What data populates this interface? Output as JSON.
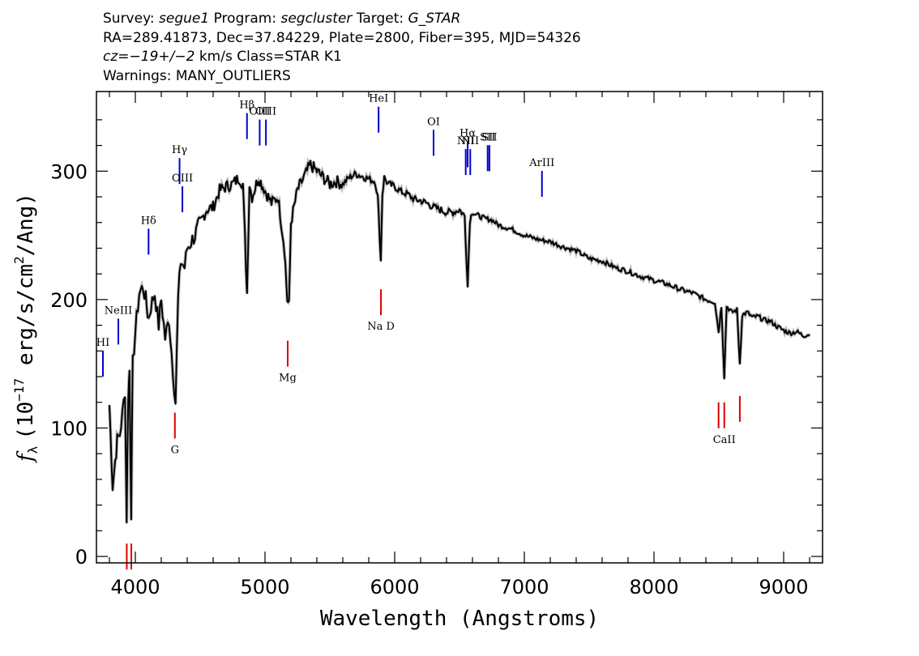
{
  "header": {
    "survey_label": "Survey:",
    "survey": "segue1",
    "program_label": "Program:",
    "program": "segcluster",
    "target_label": "Target:",
    "target": "G_STAR",
    "line2": "RA=289.41873, Dec=37.84229, Plate=2800, Fiber=395, MJD=54326",
    "cz_label": "cz=",
    "cz_value": "−19+/−2",
    "cz_rest": " km/s Class=STAR K1",
    "line4": "Warnings: MANY_OUTLIERS"
  },
  "chart_data": {
    "type": "line",
    "title": "",
    "xlabel": "Wavelength (Angstroms)",
    "ylabel_prefix": "f",
    "ylabel_sub": "λ",
    "ylabel_main": "(10",
    "ylabel_exp1": "−17",
    "ylabel_mid": " erg/s/cm",
    "ylabel_exp2": "2",
    "ylabel_end": "/Ang)",
    "xlim": [
      3700,
      9300
    ],
    "ylim": [
      -5,
      362
    ],
    "x_ticks": [
      4000,
      5000,
      6000,
      7000,
      8000,
      9000
    ],
    "x_tick_labels": [
      "4000",
      "5000",
      "6000",
      "7000",
      "8000",
      "9000"
    ],
    "y_ticks": [
      0,
      100,
      200,
      300
    ],
    "y_tick_labels": [
      "0",
      "100",
      "200",
      "300"
    ],
    "grid": false,
    "colors": {
      "spectrum": "#000000",
      "error": "#b8b8b8",
      "emission": "#0000cc",
      "absorption": "#dd0000",
      "label_line": "#000000"
    },
    "series": [
      {
        "x": [
          3800,
          3825,
          3845,
          3860,
          3880,
          3900,
          3920,
          3933,
          3945,
          3955,
          3968,
          3980,
          4000,
          4030,
          4060,
          4080,
          4102,
          4120,
          4150,
          4180,
          4200,
          4230,
          4260,
          4290,
          4310,
          4330,
          4350,
          4380,
          4400,
          4430,
          4460,
          4500,
          4550,
          4600,
          4650,
          4700,
          4750,
          4800,
          4830,
          4861,
          4880,
          4900,
          4950,
          5000,
          5050,
          5100,
          5150,
          5172,
          5185,
          5200,
          5250,
          5300,
          5350,
          5400,
          5450,
          5500,
          5550,
          5600,
          5650,
          5700,
          5750,
          5800,
          5850,
          5870,
          5893,
          5905,
          5920,
          5950,
          6000,
          6050,
          6100,
          6150,
          6200,
          6250,
          6300,
          6350,
          6400,
          6450,
          6500,
          6540,
          6563,
          6580,
          6600,
          6650,
          6700,
          6750,
          6800,
          6900,
          7000,
          7100,
          7200,
          7300,
          7400,
          7500,
          7600,
          7700,
          7800,
          7900,
          8000,
          8100,
          8200,
          8300,
          8400,
          8470,
          8498,
          8520,
          8542,
          8560,
          8600,
          8640,
          8662,
          8680,
          8720,
          8760,
          8800,
          8850,
          8900,
          8950,
          9000,
          9050,
          9100,
          9150,
          9200
        ],
        "y": [
          118,
          55,
          75,
          90,
          95,
          110,
          130,
          30,
          125,
          145,
          35,
          150,
          175,
          205,
          210,
          200,
          185,
          195,
          205,
          180,
          200,
          170,
          185,
          145,
          120,
          200,
          230,
          225,
          240,
          245,
          250,
          260,
          270,
          272,
          285,
          288,
          290,
          295,
          290,
          205,
          290,
          280,
          295,
          285,
          275,
          280,
          240,
          200,
          195,
          260,
          285,
          295,
          305,
          300,
          295,
          290,
          292,
          290,
          295,
          298,
          296,
          294,
          292,
          280,
          230,
          282,
          295,
          290,
          288,
          284,
          282,
          278,
          277,
          275,
          272,
          270,
          268,
          268,
          270,
          265,
          210,
          262,
          268,
          265,
          263,
          262,
          258,
          255,
          250,
          247,
          245,
          241,
          238,
          232,
          230,
          225,
          222,
          218,
          215,
          212,
          208,
          205,
          200,
          198,
          175,
          195,
          140,
          195,
          190,
          192,
          150,
          188,
          190,
          186,
          187,
          184,
          183,
          179,
          176,
          174,
          175,
          172,
          173
        ]
      }
    ],
    "emission_lines": [
      {
        "label": "HI",
        "x": 3750,
        "y": 140
      },
      {
        "label": "NeIII",
        "x": 3869,
        "y": 165
      },
      {
        "label": "Hδ",
        "x": 4102,
        "y": 235
      },
      {
        "label": "Hγ",
        "x": 4341,
        "y": 290
      },
      {
        "label": "OIII",
        "x": 4363,
        "y": 268
      },
      {
        "label": "Hβ",
        "x": 4861,
        "y": 325
      },
      {
        "label": "OIII",
        "x": 4959,
        "y": 320
      },
      {
        "label": "OIII",
        "x": 5007,
        "y": 320
      },
      {
        "label": "HeI",
        "x": 5876,
        "y": 330
      },
      {
        "label": "OI",
        "x": 6300,
        "y": 312
      },
      {
        "label": "NII",
        "x": 6548,
        "y": 297
      },
      {
        "label": "Hα",
        "x": 6563,
        "y": 303
      },
      {
        "label": "NII",
        "x": 6583,
        "y": 297
      },
      {
        "label": "SII",
        "x": 6717,
        "y": 300
      },
      {
        "label": "SII",
        "x": 6731,
        "y": 300
      },
      {
        "label": "ArIII",
        "x": 7136,
        "y": 280
      }
    ],
    "absorption_lines": [
      {
        "label": "",
        "x": 3934,
        "y": 10
      },
      {
        "label": "",
        "x": 3969,
        "y": 10
      },
      {
        "label": "G",
        "x": 4305,
        "y": 112
      },
      {
        "label": "Mg",
        "x": 5175,
        "y": 168
      },
      {
        "label": "Na D",
        "x": 5894,
        "y": 208
      },
      {
        "label": "",
        "x": 8498,
        "y": 120
      },
      {
        "label": "CaII",
        "x": 8542,
        "y": 120
      },
      {
        "label": "",
        "x": 8662,
        "y": 125
      }
    ]
  }
}
